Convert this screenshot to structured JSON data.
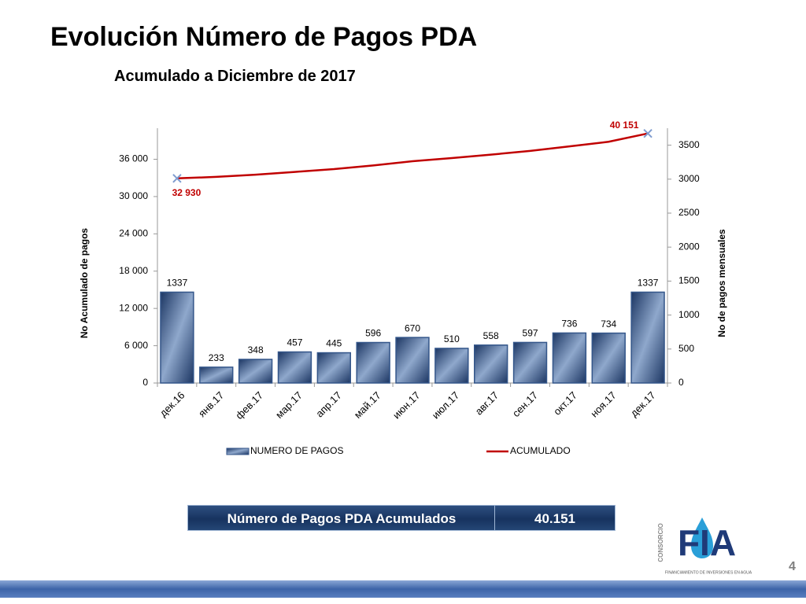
{
  "title": "Evolución Número de Pagos PDA",
  "subtitle": "Acumulado a Diciembre de 2017",
  "chart_data": {
    "type": "bar-line",
    "categories": [
      "дек.16",
      "янв.17",
      "фев.17",
      "мар.17",
      "апр.17",
      "май.17",
      "июн.17",
      "июл.17",
      "авг.17",
      "сен.17",
      "окт.17",
      "ноя.17",
      "дек.17"
    ],
    "series": [
      {
        "name": "NUMERO DE PAGOS",
        "type": "bar",
        "axis": "y2",
        "color": "#34568a",
        "values": [
          1337,
          233,
          348,
          457,
          445,
          596,
          670,
          510,
          558,
          597,
          736,
          734,
          1337
        ]
      },
      {
        "name": "ACUMULADO",
        "type": "line",
        "axis": "y",
        "color": "#c00000",
        "values": [
          32930,
          33163,
          33511,
          33968,
          34413,
          35009,
          35679,
          36189,
          36747,
          37344,
          38080,
          38814,
          40151
        ],
        "value_labels": [
          "32 930",
          null,
          null,
          null,
          null,
          null,
          null,
          null,
          null,
          null,
          null,
          null,
          "40 151"
        ]
      }
    ],
    "ylabel": "No Acumulado de pagos",
    "y2label": "No de pagos mensuales",
    "ylim": [
      0,
      41000
    ],
    "yticks": [
      0,
      {
        "value": 6000,
        "label": "6 000"
      },
      {
        "value": 12000,
        "label": "12 000"
      },
      {
        "value": 18000,
        "label": "18 000"
      },
      {
        "value": 24000,
        "label": "24 000"
      },
      {
        "value": 30000,
        "label": "30 000"
      },
      {
        "value": 36000,
        "label": "36 000"
      }
    ],
    "y2lim": [
      0,
      3750
    ],
    "y2ticks": [
      0,
      500,
      1000,
      1500,
      2000,
      2500,
      3000,
      3500
    ],
    "legend": "bottom"
  },
  "summary": {
    "label": "Número de Pagos PDA Acumulados",
    "value": "40.151"
  },
  "logo": {
    "top": "CONSORCIO",
    "name": "FIA",
    "tagline": "FINANCIAMIENTO DE INVERSIONES EN AGUA"
  },
  "page_number": "4"
}
